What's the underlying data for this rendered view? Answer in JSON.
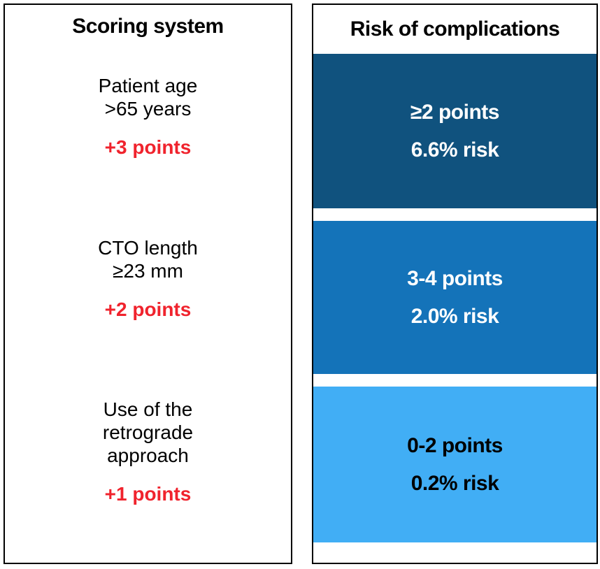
{
  "left_panel": {
    "title": "Scoring system",
    "items": [
      {
        "criteria_lines": [
          "Patient age",
          ">65 years"
        ],
        "points": "+3 points"
      },
      {
        "criteria_lines": [
          "CTO length",
          "≥23 mm"
        ],
        "points": "+2 points"
      },
      {
        "criteria_lines": [
          "Use of the",
          "retrograde",
          "approach"
        ],
        "points": "+1 points"
      }
    ],
    "points_color": "#f0232d"
  },
  "right_panel": {
    "title": "Risk of complications",
    "bands": [
      {
        "points_label": "≥2 points",
        "risk_label": "6.6% risk",
        "bg": "#10527e",
        "text_color": "#ffffff"
      },
      {
        "points_label": "3-4 points",
        "risk_label": "2.0% risk",
        "bg": "#1473b9",
        "text_color": "#ffffff"
      },
      {
        "points_label": "0-2 points",
        "risk_label": "0.2% risk",
        "bg": "#41aef5",
        "text_color": "#000000"
      }
    ]
  },
  "colors": {
    "panel_border": "#000000",
    "panel_background": "#ffffff",
    "title_text": "#000000"
  }
}
